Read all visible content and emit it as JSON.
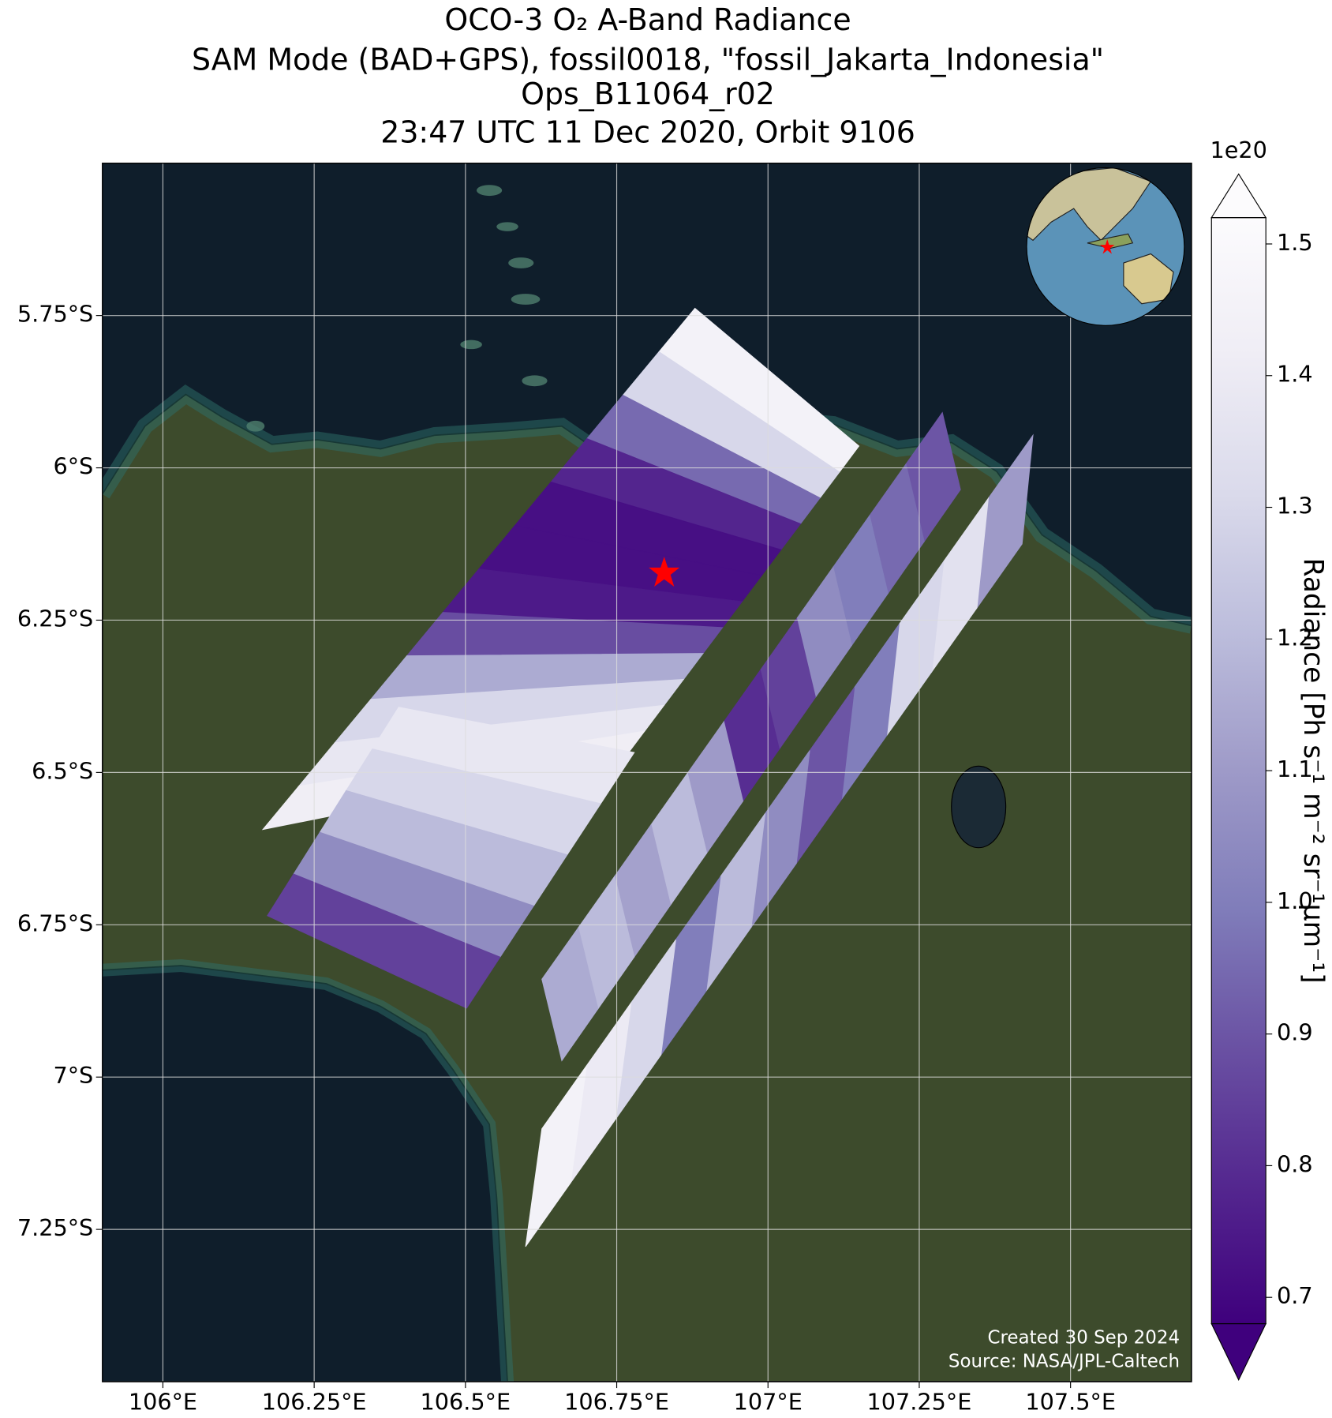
{
  "chart_data": {
    "type": "map",
    "title": [
      "OCO-3 O₂ A-Band Radiance",
      "SAM Mode (BAD+GPS), fossil0018, \"fossil_Jakarta_Indonesia\"",
      "Ops_B11064_r02",
      "23:47 UTC 11 Dec 2020, Orbit 9106"
    ],
    "xlim": [
      105.9,
      107.7
    ],
    "ylim": [
      -7.5,
      -5.5
    ],
    "xticks": [
      {
        "value": 106,
        "label": "106°E"
      },
      {
        "value": 106.25,
        "label": "106.25°E"
      },
      {
        "value": 106.5,
        "label": "106.5°E"
      },
      {
        "value": 106.75,
        "label": "106.75°E"
      },
      {
        "value": 107,
        "label": "107°E"
      },
      {
        "value": 107.25,
        "label": "107.25°E"
      },
      {
        "value": 107.5,
        "label": "107.5°E"
      }
    ],
    "yticks": [
      {
        "value": -5.75,
        "label": "5.75°S"
      },
      {
        "value": -6,
        "label": "6°S"
      },
      {
        "value": -6.25,
        "label": "6.25°S"
      },
      {
        "value": -6.5,
        "label": "6.5°S"
      },
      {
        "value": -6.75,
        "label": "6.75°S"
      },
      {
        "value": -7,
        "label": "7°S"
      },
      {
        "value": -7.25,
        "label": "7.25°S"
      }
    ],
    "grid": true,
    "colorbar": {
      "label": "Radiance [Ph s⁻¹ m⁻² sr⁻¹μm⁻¹]",
      "offset_label": "1e20",
      "lim": [
        0.68,
        1.52
      ],
      "ticks": [
        0.7,
        0.8,
        0.9,
        {
          "value": 1,
          "label": "1.0"
        },
        1.1,
        1.2,
        1.3,
        1.4,
        1.5
      ],
      "colormap": [
        "#3f007d",
        "#54278f",
        "#6a51a3",
        "#807dba",
        "#9e9ac8",
        "#bcbddc",
        "#dadaeb",
        "#efedf5",
        "#fcfbfd"
      ]
    },
    "swaths": [
      {
        "values": [
          1.45,
          1.3,
          0.95,
          0.78,
          0.72,
          0.72,
          0.75,
          0.88,
          1.15,
          1.3,
          1.38,
          1.42
        ]
      },
      {
        "values": [
          1.38,
          1.3,
          1.2,
          1.05,
          0.85
        ]
      },
      {
        "values": [
          0.9,
          0.95,
          1.0,
          1.05,
          0.85,
          0.8,
          1.1,
          1.2,
          1.12,
          1.2,
          1.15
        ]
      },
      {
        "values": [
          1.1,
          1.35,
          1.3,
          1.0,
          0.9,
          1.05,
          1.2,
          1.0,
          1.3,
          1.4,
          1.45
        ]
      }
    ],
    "annotations": [
      "Created 30 Sep 2024",
      "Source: NASA/JPL-Caltech"
    ]
  }
}
